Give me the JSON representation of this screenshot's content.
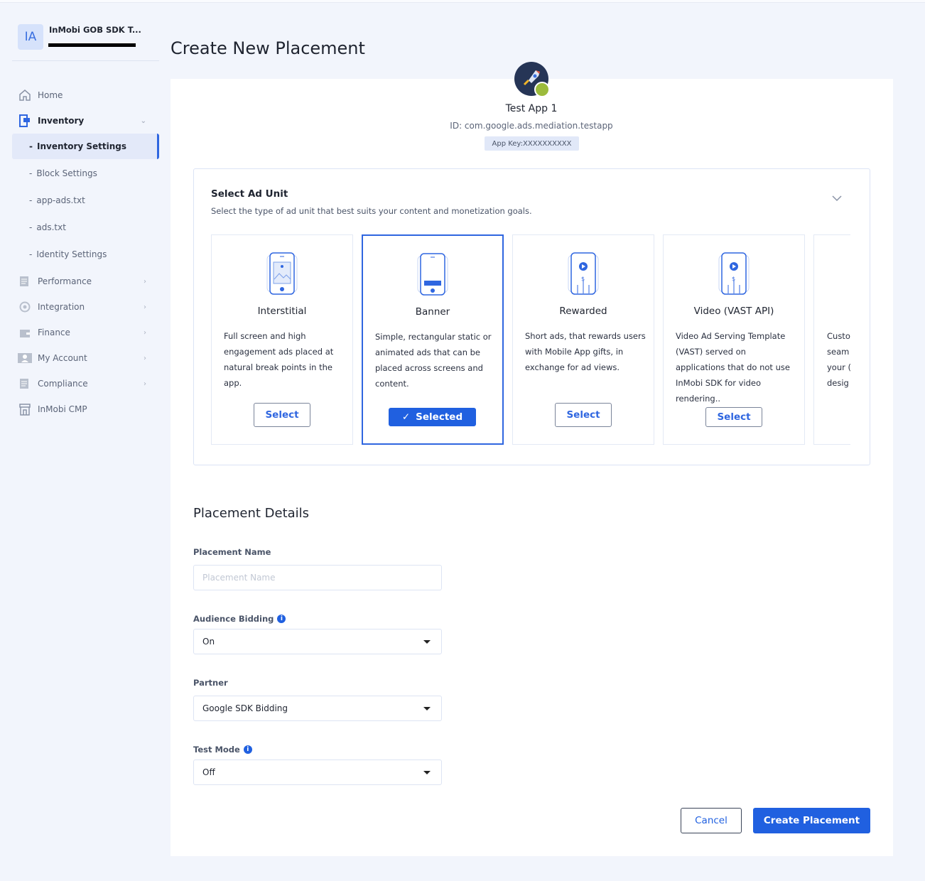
{
  "sidebar": {
    "org_initials": "IA",
    "org_name": "InMobi GOB SDK T...",
    "items": [
      {
        "label": "Home",
        "icon": "home-icon"
      },
      {
        "label": "Inventory",
        "icon": "inventory-icon"
      },
      {
        "label": "Inventory Settings"
      },
      {
        "label": "Block Settings"
      },
      {
        "label": "app-ads.txt"
      },
      {
        "label": "ads.txt"
      },
      {
        "label": "Identity Settings"
      },
      {
        "label": "Performance",
        "icon": "report-icon"
      },
      {
        "label": "Integration",
        "icon": "target-icon"
      },
      {
        "label": "Finance",
        "icon": "wallet-icon"
      },
      {
        "label": "My Account",
        "icon": "user-icon"
      },
      {
        "label": "Compliance",
        "icon": "document-icon"
      },
      {
        "label": "InMobi CMP",
        "icon": "store-icon"
      }
    ]
  },
  "page": {
    "title": "Create New Placement"
  },
  "app": {
    "name": "Test App 1",
    "id": "ID: com.google.ads.mediation.testapp",
    "key": "App Key:XXXXXXXXXX"
  },
  "ad_unit": {
    "title": "Select Ad Unit",
    "subtitle": "Select the type of ad unit that best suits your content and monetization goals.",
    "cards": [
      {
        "name": "Interstitial",
        "desc": "Full screen and high engagement ads placed at natural break points in the app.",
        "button": "Select"
      },
      {
        "name": "Banner",
        "desc": "Simple, rectangular static or animated ads that can be placed across screens and content.",
        "button": "Selected"
      },
      {
        "name": "Rewarded",
        "desc": "Short ads, that rewards users with Mobile App gifts, in exchange for ad views.",
        "button": "Select"
      },
      {
        "name": "Video (VAST API)",
        "desc": "Video Ad Serving Template (VAST) served on applications that do not use InMobi SDK for video rendering..",
        "button": "Select"
      },
      {
        "desc_lines": [
          "Custo",
          "seam",
          "your (",
          "desig"
        ]
      }
    ],
    "selected": "Banner"
  },
  "details": {
    "title": "Placement Details",
    "placement_name_label": "Placement Name",
    "placement_name_placeholder": "Placement Name",
    "placement_name_value": "",
    "audience_label": "Audience Bidding",
    "audience_value": "On",
    "partner_label": "Partner",
    "partner_value": "Google SDK Bidding",
    "test_label": "Test Mode",
    "test_value": "Off"
  },
  "actions": {
    "cancel": "Cancel",
    "create": "Create Placement"
  },
  "colors": {
    "accent": "#2060e0",
    "background": "#f2f5fc"
  }
}
